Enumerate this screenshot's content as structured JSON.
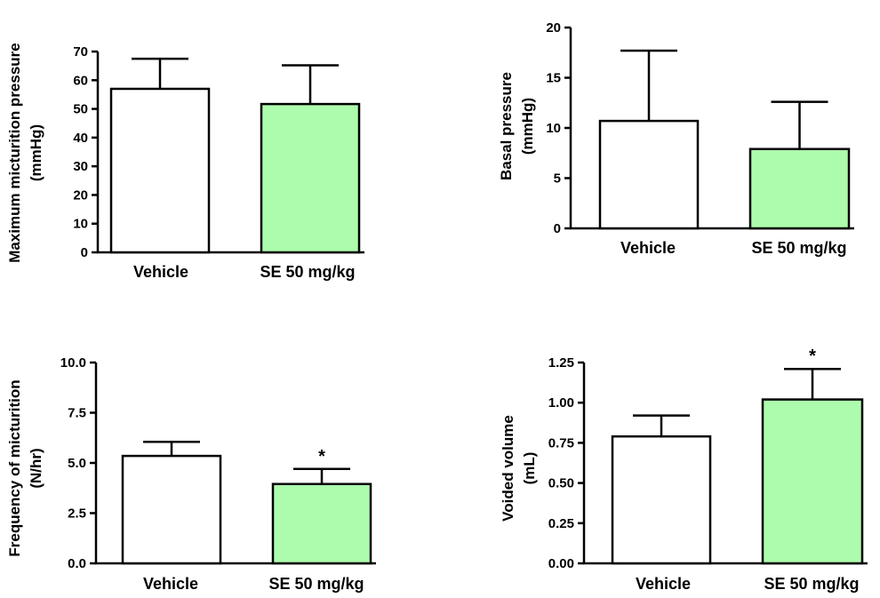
{
  "colors": {
    "vehicle_fill": "#ffffff",
    "treatment_fill": "#adfcad",
    "stroke": "#000000"
  },
  "chart_data": [
    {
      "type": "bar",
      "categories": [
        "Vehicle",
        "SE 50 mg/kg"
      ],
      "values": [
        57,
        51.7
      ],
      "errors": [
        10.5,
        13.5
      ],
      "significance": [
        "",
        ""
      ],
      "ylabel_lines": [
        "Maximum micturition pressure",
        "(mmHg)"
      ],
      "ylim": [
        0,
        70
      ],
      "yticks": [
        0,
        10,
        20,
        30,
        40,
        50,
        60,
        70
      ],
      "ytick_labels": [
        "0",
        "10",
        "20",
        "30",
        "40",
        "50",
        "60",
        "70"
      ]
    },
    {
      "type": "bar",
      "categories": [
        "Vehicle",
        "SE 50 mg/kg"
      ],
      "values": [
        10.7,
        7.9
      ],
      "errors": [
        7.0,
        4.7
      ],
      "significance": [
        "",
        ""
      ],
      "ylabel_lines": [
        "Basal pressure",
        "(mmHg)"
      ],
      "ylim": [
        0,
        20
      ],
      "yticks": [
        0,
        5,
        10,
        15,
        20
      ],
      "ytick_labels": [
        "0",
        "5",
        "10",
        "15",
        "20"
      ]
    },
    {
      "type": "bar",
      "categories": [
        "Vehicle",
        "SE 50 mg/kg"
      ],
      "values": [
        5.35,
        3.95
      ],
      "errors": [
        0.7,
        0.75
      ],
      "significance": [
        "",
        "*"
      ],
      "ylabel_lines": [
        "Frequency of micturition",
        "(N/hr)"
      ],
      "ylim": [
        0,
        10
      ],
      "yticks": [
        0,
        2.5,
        5,
        7.5,
        10
      ],
      "ytick_labels": [
        "0.0",
        "2.5",
        "5.0",
        "7.5",
        "10.0"
      ]
    },
    {
      "type": "bar",
      "categories": [
        "Vehicle",
        "SE 50 mg/kg"
      ],
      "values": [
        0.79,
        1.02
      ],
      "errors": [
        0.13,
        0.19
      ],
      "significance": [
        "",
        "*"
      ],
      "ylabel_lines": [
        "Voided volume",
        "(mL)"
      ],
      "ylim": [
        0,
        1.25
      ],
      "yticks": [
        0,
        0.25,
        0.5,
        0.75,
        1.0,
        1.25
      ],
      "ytick_labels": [
        "0.00",
        "0.25",
        "0.50",
        "0.75",
        "1.00",
        "1.25"
      ]
    }
  ]
}
